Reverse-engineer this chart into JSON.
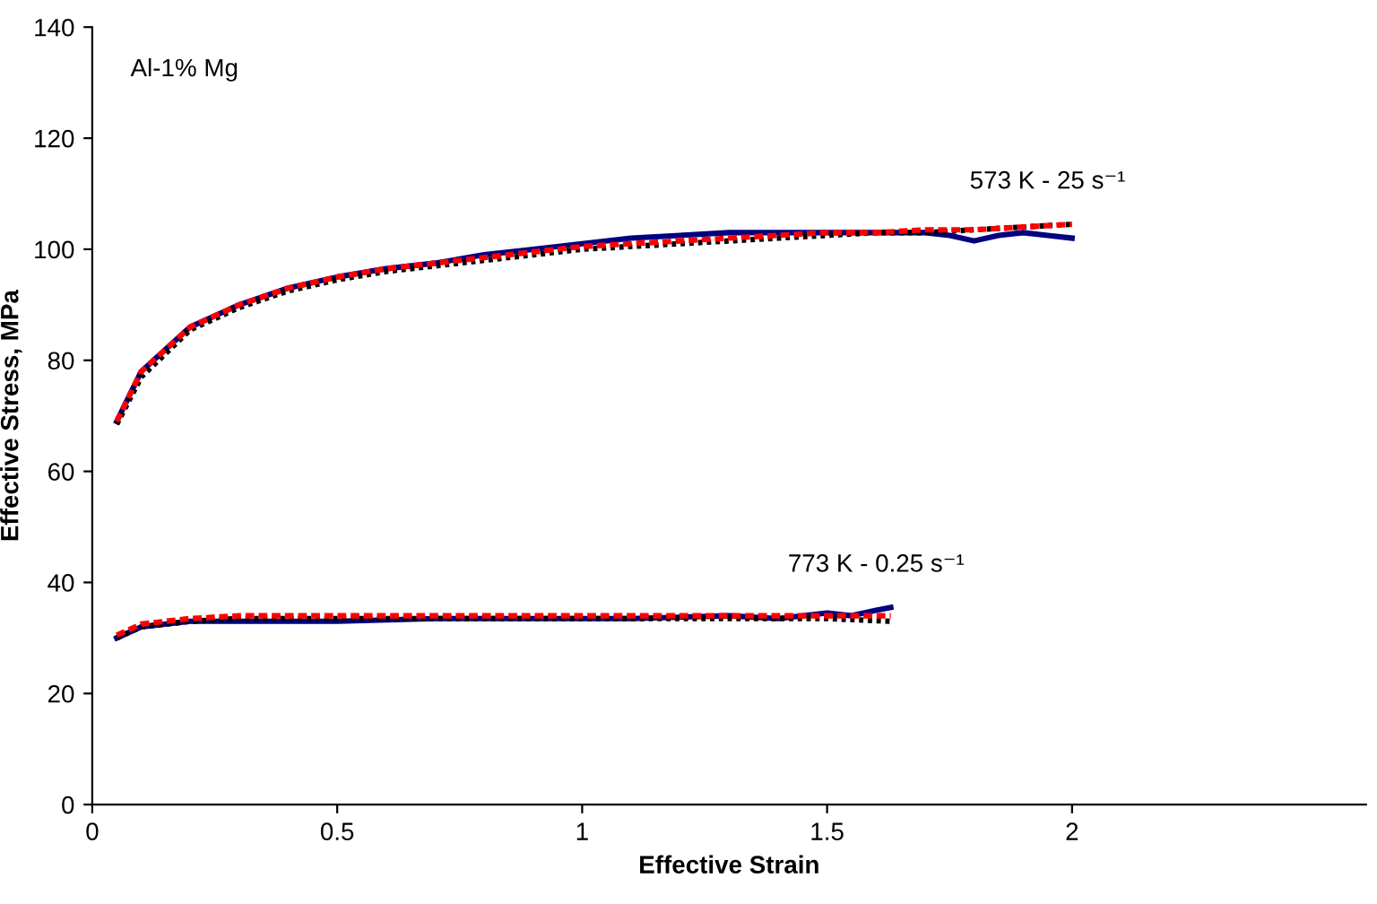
{
  "chart_data": {
    "type": "line",
    "xlabel": "Effective Strain",
    "ylabel": "Effective Stress, MPa",
    "xlim": [
      0,
      2.6
    ],
    "ylim": [
      0,
      140
    ],
    "xticks": [
      0,
      0.5,
      1,
      1.5,
      2
    ],
    "yticks": [
      0,
      20,
      40,
      60,
      80,
      100,
      120,
      140
    ],
    "grid": false,
    "annotations": [
      "Al-1% Mg",
      {
        "text": "573 K - 25 s⁻¹",
        "x": 1.95,
        "y": 104
      },
      {
        "text": "773 K - 0.25 s⁻¹",
        "x": 1.6,
        "y": 35
      }
    ],
    "series": [
      {
        "color": "#000080",
        "line_style": "solid",
        "x": [
          0.05,
          0.1,
          0.2,
          0.3,
          0.4,
          0.5,
          0.6,
          0.7,
          0.8,
          0.9,
          1.0,
          1.1,
          1.2,
          1.3,
          1.4,
          1.5,
          1.6,
          1.7,
          1.75,
          1.8,
          1.85,
          1.9,
          1.95,
          2.0
        ],
        "values": [
          69,
          78,
          86,
          90,
          93,
          95,
          96.5,
          97.5,
          99,
          100,
          101,
          102,
          102.5,
          103,
          103,
          103,
          103,
          103,
          102.5,
          101.5,
          102.5,
          103,
          102.5,
          102
        ]
      },
      {
        "color": "#000000",
        "line_style": "dotted",
        "x": [
          0.05,
          0.1,
          0.2,
          0.3,
          0.4,
          0.5,
          0.6,
          0.7,
          0.8,
          0.9,
          1.0,
          1.1,
          1.2,
          1.3,
          1.4,
          1.5,
          1.6,
          1.7,
          1.8,
          1.9,
          2.0
        ],
        "values": [
          68.5,
          77,
          85.5,
          89.5,
          92.5,
          94.5,
          96,
          97,
          98,
          99,
          100,
          100.5,
          101,
          101.5,
          102,
          102.5,
          103,
          103,
          103.5,
          104,
          104.5
        ]
      },
      {
        "color": "#ff0000",
        "line_style": "dashed",
        "x": [
          0.05,
          0.1,
          0.2,
          0.3,
          0.4,
          0.5,
          0.6,
          0.7,
          0.8,
          0.9,
          1.0,
          1.1,
          1.2,
          1.3,
          1.4,
          1.5,
          1.6,
          1.7,
          1.8,
          1.9,
          2.0
        ],
        "values": [
          69,
          78,
          86,
          90,
          93,
          95,
          96.5,
          97.5,
          98.5,
          99.5,
          100.5,
          101,
          101.5,
          102,
          102.5,
          103,
          103,
          103.5,
          103.5,
          104,
          104.5
        ]
      },
      {
        "color": "#000080",
        "line_style": "solid",
        "x": [
          0.05,
          0.1,
          0.2,
          0.3,
          0.5,
          0.7,
          0.9,
          1.1,
          1.3,
          1.4,
          1.5,
          1.55,
          1.6,
          1.63
        ],
        "values": [
          30,
          32,
          33,
          33,
          33,
          33.5,
          33.5,
          33.5,
          34,
          33.5,
          34.5,
          34,
          35,
          35.5
        ]
      },
      {
        "color": "#000000",
        "line_style": "dotted",
        "x": [
          0.05,
          0.1,
          0.2,
          0.3,
          0.5,
          0.7,
          0.9,
          1.1,
          1.3,
          1.5,
          1.63
        ],
        "values": [
          30,
          32,
          33,
          33.5,
          33.5,
          33.5,
          33.5,
          33.5,
          33.5,
          33.5,
          33
        ]
      },
      {
        "color": "#ff0000",
        "line_style": "dashed",
        "x": [
          0.05,
          0.1,
          0.2,
          0.3,
          0.5,
          0.7,
          0.9,
          1.1,
          1.3,
          1.5,
          1.63
        ],
        "values": [
          30.5,
          32.5,
          33.5,
          34,
          34,
          34,
          34,
          34,
          34,
          34,
          34
        ]
      }
    ]
  }
}
